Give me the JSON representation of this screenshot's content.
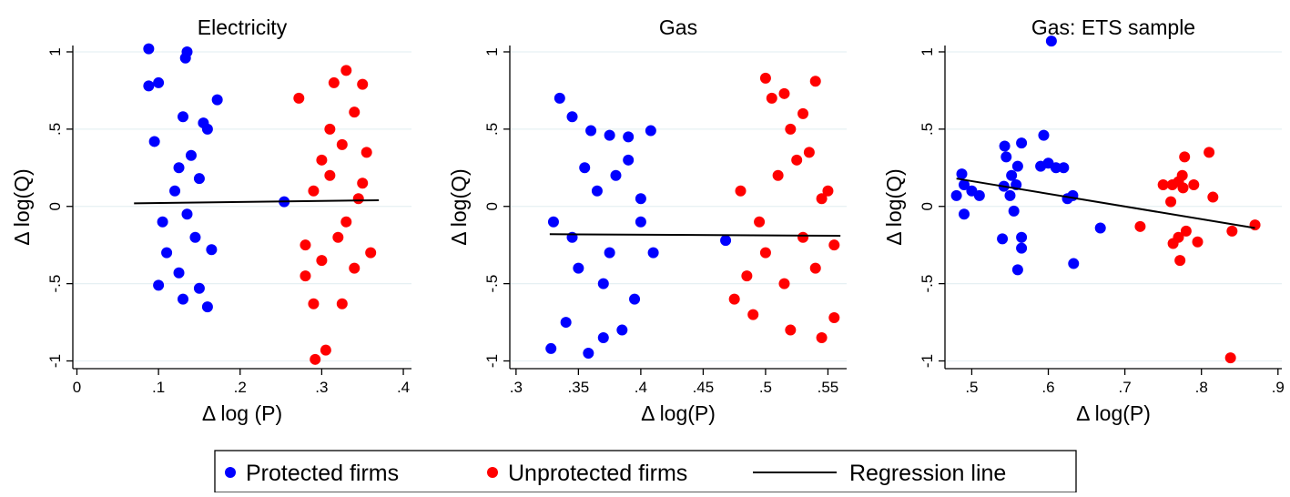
{
  "colors": {
    "protected": "#0000ff",
    "unprotected": "#ff0000",
    "regression": "#000000",
    "grid": "#e6f0f3"
  },
  "legend": {
    "items": [
      {
        "label": "Protected firms",
        "kind": "dot",
        "color": "#0000ff"
      },
      {
        "label": "Unprotected firms",
        "kind": "dot",
        "color": "#ff0000"
      },
      {
        "label": "Regression line",
        "kind": "line",
        "color": "#000000"
      }
    ],
    "placement": "bottom-center"
  },
  "chart_data": [
    {
      "type": "scatter",
      "title": "Electricity",
      "xlabel": "Δ log (P)",
      "ylabel": "Δ log(Q)",
      "xlim": [
        -0.005,
        0.41
      ],
      "ylim": [
        -1.05,
        1.1
      ],
      "xticks": [
        0,
        0.1,
        0.2,
        0.3,
        0.4
      ],
      "xtick_labels": [
        "0",
        ".1",
        ".2",
        ".3",
        ".4"
      ],
      "yticks": [
        -1,
        -0.5,
        0,
        0.5,
        1
      ],
      "ytick_labels": [
        "-1",
        "-.5",
        "0",
        ".5",
        "1"
      ],
      "grid": true,
      "regression": {
        "x": [
          0.07,
          0.37
        ],
        "y": [
          0.02,
          0.04
        ]
      },
      "series": [
        {
          "name": "Protected firms",
          "color": "#0000ff",
          "points": [
            [
              0.088,
              1.02
            ],
            [
              0.088,
              0.78
            ],
            [
              0.1,
              0.8
            ],
            [
              0.135,
              1.0
            ],
            [
              0.133,
              0.96
            ],
            [
              0.172,
              0.69
            ],
            [
              0.13,
              0.58
            ],
            [
              0.155,
              0.54
            ],
            [
              0.16,
              0.5
            ],
            [
              0.1,
              -0.51
            ],
            [
              0.13,
              -0.6
            ],
            [
              0.15,
              -0.53
            ],
            [
              0.16,
              -0.65
            ],
            [
              0.095,
              0.42
            ],
            [
              0.14,
              0.33
            ],
            [
              0.11,
              -0.3
            ],
            [
              0.12,
              0.1
            ],
            [
              0.145,
              -0.2
            ],
            [
              0.125,
              0.25
            ],
            [
              0.105,
              -0.1
            ],
            [
              0.135,
              -0.05
            ],
            [
              0.15,
              0.18
            ],
            [
              0.165,
              -0.28
            ],
            [
              0.125,
              -0.43
            ]
          ]
        },
        {
          "name": "Unprotected firms",
          "color": "#ff0000",
          "points": [
            [
              0.33,
              0.88
            ],
            [
              0.315,
              0.8
            ],
            [
              0.35,
              0.79
            ],
            [
              0.272,
              0.7
            ],
            [
              0.34,
              0.61
            ],
            [
              0.31,
              0.5
            ],
            [
              0.29,
              -0.63
            ],
            [
              0.325,
              -0.63
            ],
            [
              0.305,
              -0.93
            ],
            [
              0.292,
              -0.99
            ],
            [
              0.28,
              -0.45
            ],
            [
              0.34,
              -0.4
            ],
            [
              0.3,
              0.3
            ],
            [
              0.32,
              -0.2
            ],
            [
              0.35,
              0.15
            ],
            [
              0.29,
              0.1
            ],
            [
              0.33,
              -0.1
            ],
            [
              0.36,
              -0.3
            ],
            [
              0.31,
              0.2
            ],
            [
              0.345,
              0.05
            ],
            [
              0.28,
              -0.25
            ],
            [
              0.355,
              0.35
            ],
            [
              0.3,
              -0.35
            ],
            [
              0.325,
              0.4
            ]
          ]
        }
      ],
      "extra_points": [
        {
          "x": 0.254,
          "y": 0.03,
          "color": "#0000ff"
        }
      ]
    },
    {
      "type": "scatter",
      "title": "Gas",
      "xlabel": "Δ log(P)",
      "ylabel": "Δ log(Q)",
      "xlim": [
        0.295,
        0.565
      ],
      "ylim": [
        -1.05,
        1.1
      ],
      "xticks": [
        0.3,
        0.35,
        0.4,
        0.45,
        0.5,
        0.55
      ],
      "xtick_labels": [
        ".3",
        ".35",
        ".4",
        ".45",
        ".5",
        ".55"
      ],
      "yticks": [
        -1,
        -0.5,
        0,
        0.5,
        1
      ],
      "ytick_labels": [
        "-1",
        "-.5",
        "0",
        ".5",
        "1"
      ],
      "grid": true,
      "regression": {
        "x": [
          0.327,
          0.56
        ],
        "y": [
          -0.18,
          -0.19
        ]
      },
      "series": [
        {
          "name": "Protected firms",
          "color": "#0000ff",
          "points": [
            [
              0.335,
              0.7
            ],
            [
              0.345,
              0.58
            ],
            [
              0.36,
              0.49
            ],
            [
              0.375,
              0.46
            ],
            [
              0.39,
              0.45
            ],
            [
              0.408,
              0.49
            ],
            [
              0.328,
              -0.92
            ],
            [
              0.358,
              -0.95
            ],
            [
              0.37,
              -0.85
            ],
            [
              0.385,
              -0.8
            ],
            [
              0.34,
              -0.75
            ],
            [
              0.33,
              -0.1
            ],
            [
              0.395,
              -0.6
            ],
            [
              0.41,
              -0.3
            ],
            [
              0.35,
              -0.4
            ],
            [
              0.365,
              0.1
            ],
            [
              0.38,
              0.2
            ],
            [
              0.4,
              0.05
            ],
            [
              0.345,
              -0.2
            ],
            [
              0.37,
              -0.5
            ],
            [
              0.39,
              0.3
            ],
            [
              0.355,
              0.25
            ],
            [
              0.4,
              -0.1
            ],
            [
              0.375,
              -0.3
            ]
          ]
        },
        {
          "name": "Unprotected firms",
          "color": "#ff0000",
          "points": [
            [
              0.5,
              0.83
            ],
            [
              0.515,
              0.73
            ],
            [
              0.54,
              0.81
            ],
            [
              0.505,
              0.7
            ],
            [
              0.53,
              0.6
            ],
            [
              0.52,
              0.5
            ],
            [
              0.475,
              -0.6
            ],
            [
              0.52,
              -0.8
            ],
            [
              0.545,
              -0.85
            ],
            [
              0.555,
              -0.72
            ],
            [
              0.49,
              -0.7
            ],
            [
              0.51,
              0.2
            ],
            [
              0.53,
              -0.2
            ],
            [
              0.55,
              0.1
            ],
            [
              0.48,
              0.1
            ],
            [
              0.5,
              -0.3
            ],
            [
              0.54,
              -0.4
            ],
            [
              0.525,
              0.3
            ],
            [
              0.495,
              -0.1
            ],
            [
              0.545,
              0.05
            ],
            [
              0.515,
              -0.5
            ],
            [
              0.535,
              0.35
            ],
            [
              0.485,
              -0.45
            ],
            [
              0.555,
              -0.25
            ]
          ]
        }
      ],
      "extra_points": [
        {
          "x": 0.468,
          "y": -0.22,
          "color": "#0000ff"
        }
      ]
    },
    {
      "type": "scatter",
      "title": "Gas: ETS sample",
      "xlabel": "Δ log(P)",
      "ylabel": "Δ log(Q)",
      "xlim": [
        0.465,
        0.905
      ],
      "ylim": [
        -1.05,
        1.1
      ],
      "xticks": [
        0.5,
        0.6,
        0.7,
        0.8,
        0.9
      ],
      "xtick_labels": [
        ".5",
        ".6",
        ".7",
        ".8",
        ".9"
      ],
      "yticks": [
        -1,
        -0.5,
        0,
        0.5,
        1
      ],
      "ytick_labels": [
        "-1",
        "-.5",
        "0",
        ".5",
        "1"
      ],
      "grid": true,
      "regression": {
        "x": [
          0.48,
          0.87
        ],
        "y": [
          0.18,
          -0.14
        ]
      },
      "series": [
        {
          "name": "Protected firms",
          "color": "#0000ff",
          "points": [
            [
              0.604,
              1.07
            ],
            [
              0.594,
              0.46
            ],
            [
              0.543,
              0.39
            ],
            [
              0.565,
              0.41
            ],
            [
              0.48,
              0.07
            ],
            [
              0.487,
              0.21
            ],
            [
              0.49,
              0.14
            ],
            [
              0.5,
              0.1
            ],
            [
              0.51,
              0.07
            ],
            [
              0.49,
              -0.05
            ],
            [
              0.54,
              -0.21
            ],
            [
              0.56,
              -0.41
            ],
            [
              0.565,
              -0.27
            ],
            [
              0.565,
              -0.2
            ],
            [
              0.542,
              0.13
            ],
            [
              0.552,
              0.2
            ],
            [
              0.558,
              0.14
            ],
            [
              0.545,
              0.32
            ],
            [
              0.55,
              0.07
            ],
            [
              0.555,
              -0.03
            ],
            [
              0.56,
              0.26
            ],
            [
              0.59,
              0.26
            ],
            [
              0.6,
              0.28
            ],
            [
              0.61,
              0.25
            ],
            [
              0.62,
              0.25
            ],
            [
              0.625,
              0.05
            ],
            [
              0.632,
              0.07
            ],
            [
              0.633,
              -0.37
            ],
            [
              0.668,
              -0.14
            ]
          ]
        },
        {
          "name": "Unprotected firms",
          "color": "#ff0000",
          "points": [
            [
              0.72,
              -0.13
            ],
            [
              0.75,
              0.14
            ],
            [
              0.76,
              0.03
            ],
            [
              0.762,
              0.14
            ],
            [
              0.763,
              -0.24
            ],
            [
              0.77,
              -0.2
            ],
            [
              0.77,
              0.16
            ],
            [
              0.772,
              -0.35
            ],
            [
              0.775,
              0.2
            ],
            [
              0.778,
              0.32
            ],
            [
              0.776,
              0.12
            ],
            [
              0.78,
              -0.16
            ],
            [
              0.79,
              0.14
            ],
            [
              0.795,
              -0.23
            ],
            [
              0.81,
              0.35
            ],
            [
              0.815,
              0.06
            ],
            [
              0.84,
              -0.16
            ],
            [
              0.87,
              -0.12
            ],
            [
              0.838,
              -0.98
            ]
          ]
        }
      ],
      "extra_points": []
    }
  ]
}
